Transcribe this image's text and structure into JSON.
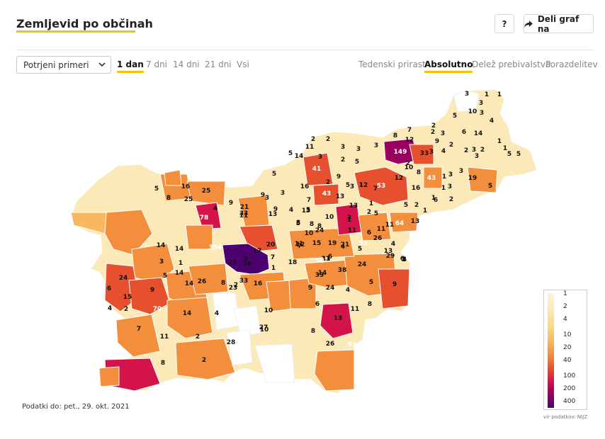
{
  "header": {
    "title": "Zemljevid po občinah",
    "help_label": "?",
    "share_label": "Deli graf na"
  },
  "controls": {
    "metric_select": "Potrjeni primeri",
    "periods": [
      "1 dan",
      "7 dni",
      "14 dni",
      "21 dni",
      "Vsi"
    ],
    "active_period": "1 dan",
    "modes": [
      "Tedenski prirast",
      "Absolutno",
      "Delež prebivalstva",
      "Porazdelitev"
    ],
    "active_mode": "Absolutno"
  },
  "footer": {
    "date_note": "Podatki do: pet., 29. okt. 2021",
    "source": "vir podatkov: NIJZ"
  },
  "legend": {
    "ticks": [
      "1",
      "2",
      "4",
      "10",
      "20",
      "40",
      "100",
      "200",
      "400"
    ]
  },
  "colors": {
    "accent": "#f5c400",
    "scale": [
      "#fdf5dc",
      "#fbeab4",
      "#fbd98a",
      "#f9b85e",
      "#f38e3c",
      "#e6502e",
      "#d4134a",
      "#9a0060",
      "#4d0070"
    ]
  },
  "map_data": {
    "labels": [
      "3",
      "1",
      "1",
      "3",
      "5",
      "10",
      "3",
      "4",
      "6",
      "14",
      "5",
      "2",
      "8",
      "7",
      "12",
      "2",
      "9",
      "4",
      "3",
      "3",
      "2",
      "1",
      "1",
      "149",
      "33",
      "2",
      "2",
      "3",
      "3",
      "5",
      "2",
      "5",
      "14",
      "11",
      "2",
      "3",
      "3",
      "2",
      "5",
      "3",
      "2",
      "10",
      "8",
      "43",
      "1",
      "3",
      "19",
      "5",
      "3",
      "3",
      "3",
      "41",
      "9",
      "3",
      "53",
      "12",
      "16",
      "1",
      "1",
      "2",
      "6",
      "5",
      "2",
      "1",
      "7",
      "2",
      "13",
      "16",
      "43",
      "13",
      "5",
      "12",
      "25",
      "16",
      "8",
      "5",
      "5",
      "3",
      "3",
      "9",
      "7",
      "25",
      "78",
      "4",
      "33",
      "9",
      "4",
      "5",
      "8",
      "1",
      "2",
      "1",
      "3",
      "11",
      "1",
      "11",
      "64",
      "13",
      "5",
      "8",
      "10",
      "5",
      "8",
      "13",
      "21",
      "9",
      "11",
      "13",
      "24",
      "10",
      "6",
      "11",
      "26",
      "4",
      "52",
      "13",
      "5",
      "4",
      "21",
      "19",
      "29",
      "2",
      "24",
      "13",
      "6",
      "12",
      "15",
      "11",
      "394",
      "17",
      "7",
      "7",
      "1",
      "10",
      "18",
      "23",
      "20",
      "9",
      "14",
      "14",
      "26",
      "8",
      "2",
      "33",
      "16",
      "31",
      "39",
      "58",
      "14",
      "38",
      "5",
      "9",
      "24",
      "6",
      "9",
      "5",
      "14",
      "14",
      "3",
      "1",
      "4",
      "15",
      "9",
      "24",
      "4",
      "4",
      "6",
      "2",
      "70",
      "14",
      "4",
      "23",
      "10",
      "6",
      "13",
      "11",
      "8",
      "7",
      "11",
      "2",
      "27",
      "10",
      "8",
      "26",
      "93",
      "28",
      "2",
      "8"
    ]
  }
}
